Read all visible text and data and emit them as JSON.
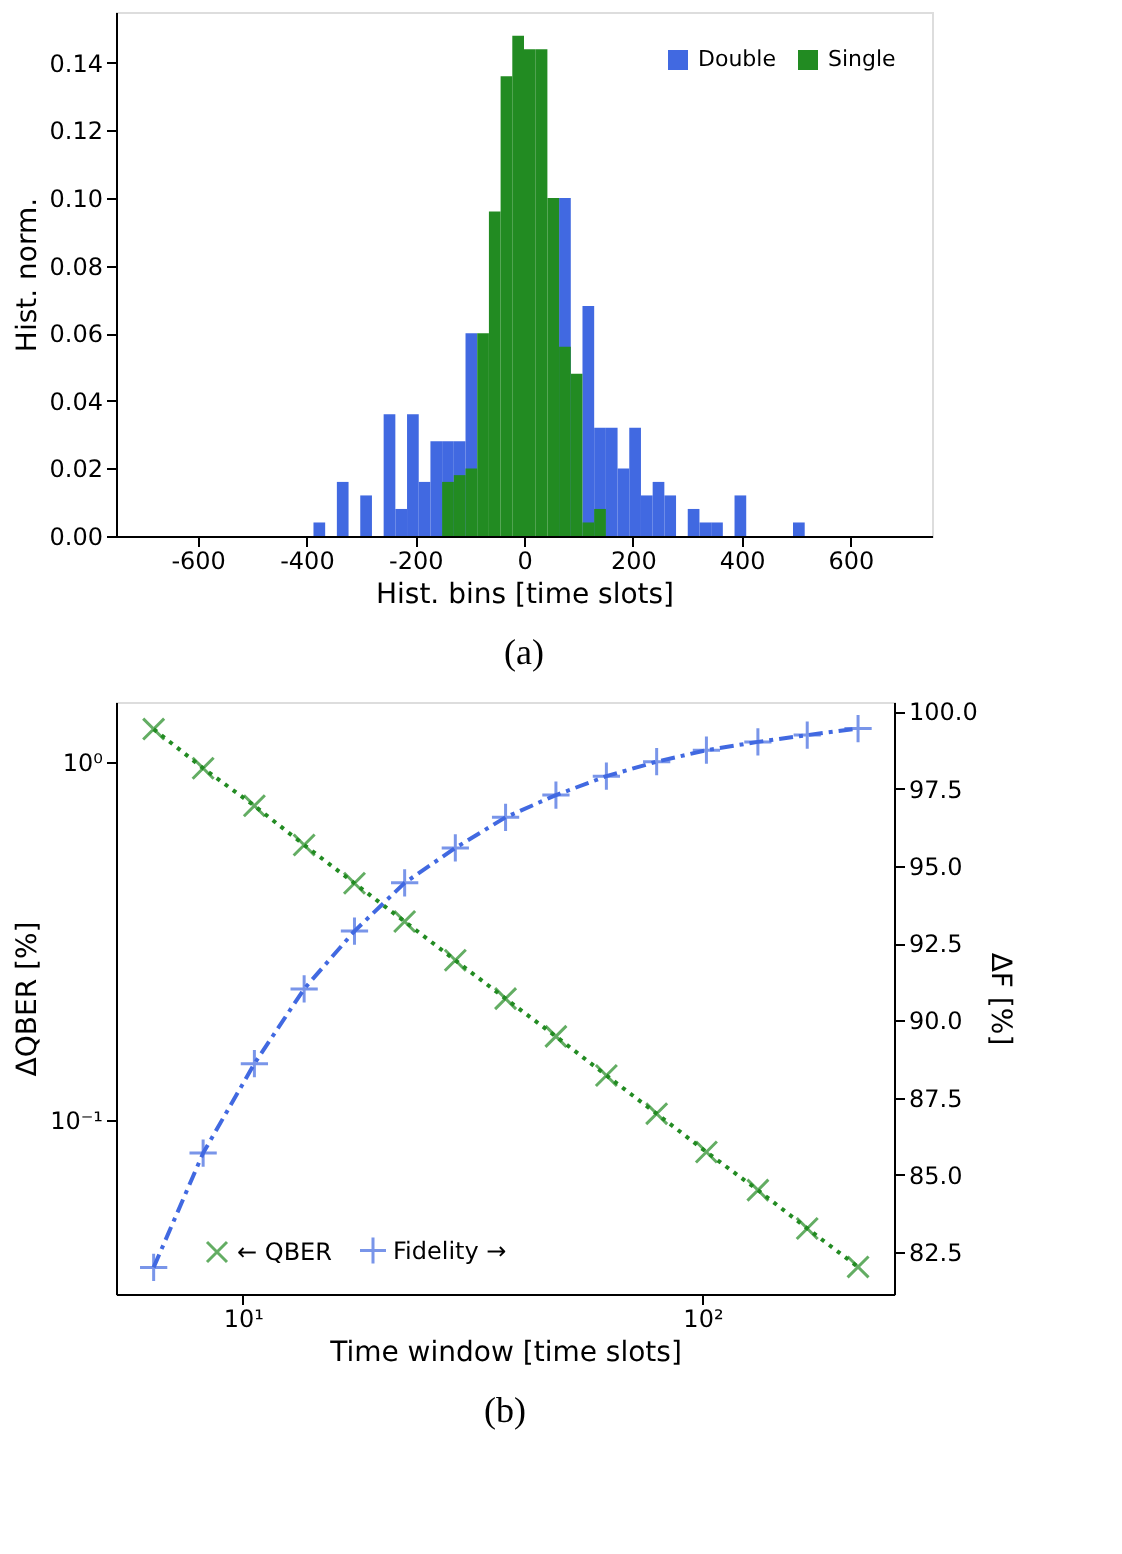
{
  "chart_data": [
    {
      "type": "histogram",
      "xlabel": "Hist. bins [time slots]",
      "ylabel": "Hist. norm.",
      "annotations": [
        "(a)"
      ],
      "bins": [
        -387,
        -365.5,
        -344,
        -322.5,
        -301,
        -279.5,
        -258,
        -236.5,
        -215,
        -193.5,
        -172,
        -150.5,
        -129,
        -107.5,
        -86,
        -64.5,
        -43,
        -21.5,
        0,
        21.5,
        43,
        64.5,
        86,
        107.5,
        129,
        150.5,
        172,
        193.5,
        215,
        236.5,
        258,
        279.5,
        301,
        322.5,
        344,
        365.5,
        387,
        408.5,
        430,
        451.5,
        473,
        494.5,
        516
      ],
      "series": [
        {
          "name": "Double",
          "color": "#4169e1",
          "values": [
            0.004,
            0,
            0.016,
            0,
            0.012,
            0,
            0.036,
            0.008,
            0.036,
            0.016,
            0.028,
            0.028,
            0.028,
            0.06,
            null,
            null,
            null,
            null,
            null,
            null,
            null,
            0.1,
            null,
            0.068,
            0.032,
            0.032,
            0.02,
            0.032,
            0.012,
            0.016,
            0.012,
            0,
            0.008,
            0.004,
            0.004,
            0,
            0.012,
            0,
            0,
            0,
            0,
            0.004
          ]
        },
        {
          "name": "Single",
          "color": "#228b22",
          "bins": [
            -150.5,
            -129,
            -107.5,
            -86,
            -64.5,
            -43,
            -21.5,
            0,
            21.5,
            43,
            64.5,
            86,
            107.5,
            129,
            150.5
          ],
          "values": [
            0.016,
            0.018,
            0.02,
            0.06,
            0.096,
            0.136,
            0.148,
            0.144,
            0.144,
            0.1,
            0.056,
            0.048,
            0.004,
            0.008
          ]
        }
      ],
      "xlim": [
        -750,
        750
      ],
      "xticks": [
        -600,
        -400,
        -200,
        0,
        200,
        400,
        600
      ],
      "ylim": [
        0,
        0.155
      ],
      "yticks": [
        {
          "value": 0,
          "label": "0.00"
        },
        {
          "value": 0.02,
          "label": "0.02"
        },
        {
          "value": 0.04,
          "label": "0.04"
        },
        {
          "value": 0.06,
          "label": "0.06"
        },
        {
          "value": 0.08,
          "label": "0.08"
        },
        {
          "value": 0.1,
          "label": "0.10"
        },
        {
          "value": 0.12,
          "label": "0.12"
        },
        {
          "value": 0.14,
          "label": "0.14"
        }
      ],
      "grid": false,
      "legend": "top right"
    },
    {
      "type": "line",
      "xlabel": "Time window [time slots]",
      "ylabel": "ΔQBER [%]",
      "y2label": "ΔF [%]",
      "annotations": [
        "(b)"
      ],
      "x": [
        6.4,
        8.2,
        10.6,
        13.6,
        17.5,
        22.5,
        29.0,
        37.3,
        48.0,
        61.8,
        79.5,
        102,
        132,
        169,
        218
      ],
      "series": [
        {
          "name": "← QBER",
          "color": "#228b22",
          "marker": "cross",
          "line_style": "dotted",
          "values": [
            1.235,
            0.96,
            0.754,
            0.586,
            0.458,
            0.358,
            0.279,
            0.218,
            0.171,
            0.133,
            0.104,
            0.0813,
            0.0636,
            0.0497,
            0.0388
          ]
        },
        {
          "name": "Fidelity →",
          "color": "#4169e1",
          "marker": "plus",
          "line_style": "dashed",
          "axis": "y2",
          "values": [
            82.01,
            85.71,
            88.6,
            91.02,
            92.89,
            94.45,
            95.58,
            96.57,
            97.29,
            97.9,
            98.37,
            98.74,
            99.01,
            99.23,
            99.44
          ]
        }
      ],
      "log": "xy",
      "xlim": [
        5.3,
        261
      ],
      "xticks": [
        {
          "value": 10,
          "label": "10¹"
        },
        {
          "value": 100,
          "label": "10²"
        }
      ],
      "ylim": [
        0.0326,
        1.47
      ],
      "yticks": [
        {
          "value": 0.1,
          "label": "10⁻¹"
        },
        {
          "value": 1,
          "label": "10⁰"
        }
      ],
      "y2lim": [
        81.15,
        100.3
      ],
      "y2ticks": [
        {
          "value": 82.5,
          "label": "82.5"
        },
        {
          "value": 85,
          "label": "85.0"
        },
        {
          "value": 87.5,
          "label": "87.5"
        },
        {
          "value": 90,
          "label": "90.0"
        },
        {
          "value": 92.5,
          "label": "92.5"
        },
        {
          "value": 95,
          "label": "95.0"
        },
        {
          "value": 97.5,
          "label": "97.5"
        },
        {
          "value": 100,
          "label": "100.0"
        }
      ],
      "grid": false,
      "legend": "bottom"
    }
  ]
}
